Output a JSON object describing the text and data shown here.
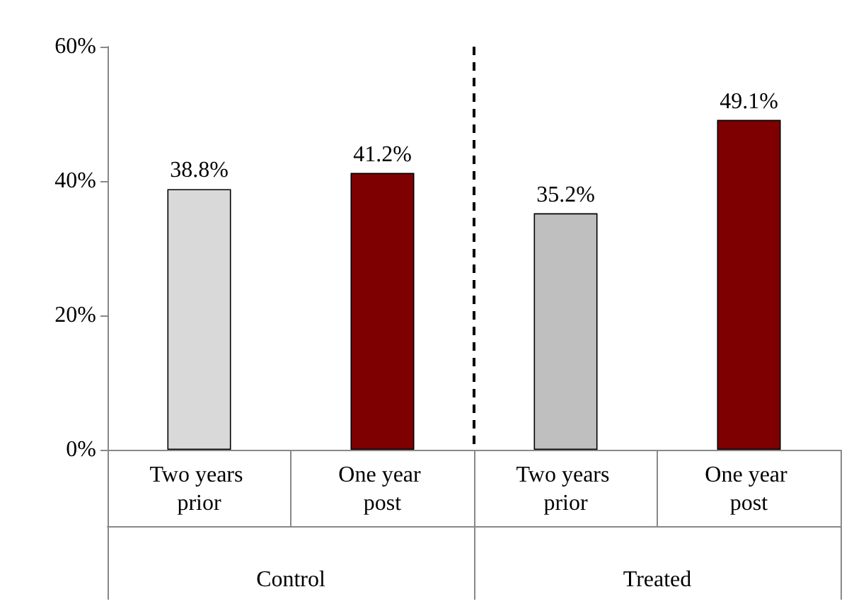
{
  "chart_data": {
    "type": "bar",
    "categories": [
      "Two years prior",
      "One year post",
      "Two years prior",
      "One year post"
    ],
    "values": [
      38.8,
      41.2,
      35.2,
      49.1
    ],
    "colors": [
      "#d9d9d9",
      "#7f0000",
      "#bfbfbf",
      "#7f0000"
    ],
    "value_labels": [
      "38.8%",
      "41.2%",
      "35.2%",
      "49.1%"
    ],
    "annotations": [
      "Control",
      "Treated"
    ],
    "ylim": [
      0,
      60
    ],
    "yticks": [
      {
        "value": 0,
        "label": "0%"
      },
      {
        "value": 20,
        "label": "20%"
      },
      {
        "value": 40,
        "label": "40%"
      },
      {
        "value": 60,
        "label": "60%"
      }
    ]
  }
}
